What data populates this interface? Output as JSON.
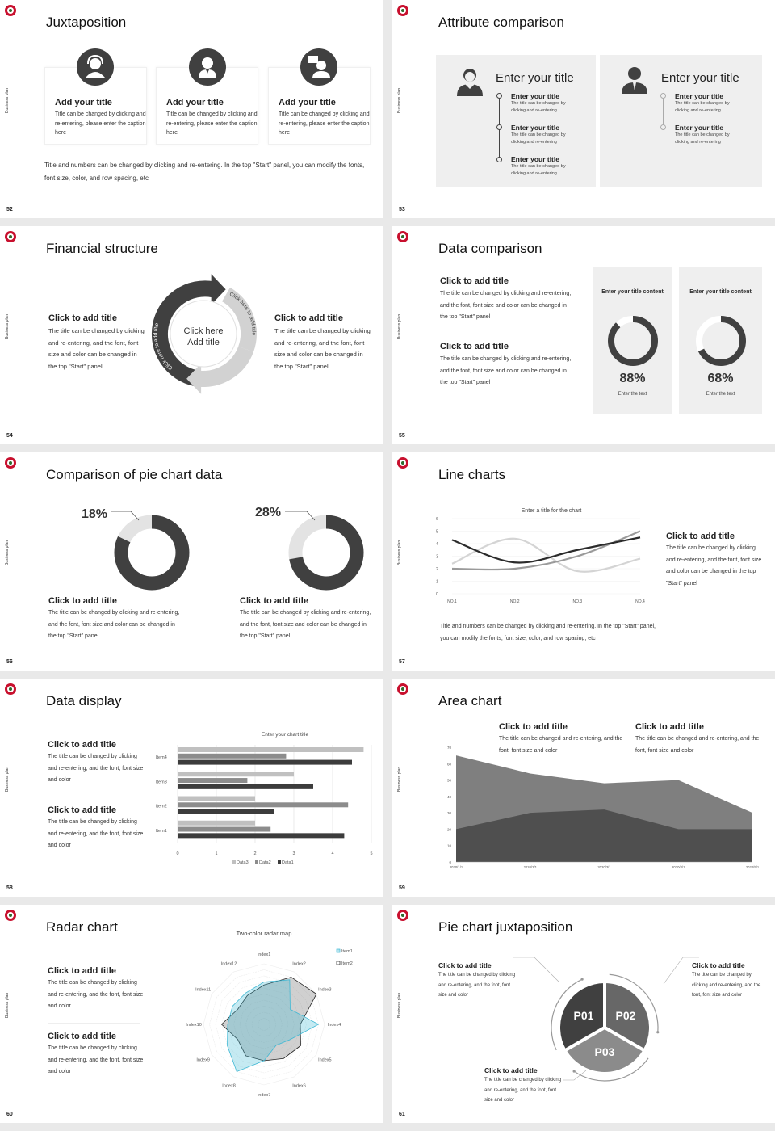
{
  "side_label": "Business plan",
  "colors": {
    "dark": "#404040",
    "mid": "#808080",
    "light": "#c8c8c8",
    "panel": "#efefef",
    "logo": "#c8102e",
    "radar_item1": "#3fb8d4",
    "radar_item2": "#222222"
  },
  "slide52": {
    "page": "52",
    "title": "Juxtaposition",
    "cards": [
      {
        "icon": "customer-service-icon",
        "title": "Add your title",
        "text": "Title can be changed by clicking and re-entering, please enter the caption here"
      },
      {
        "icon": "businessman-icon",
        "title": "Add your title",
        "text": "Title can be changed by clicking and re-entering, please enter the caption here"
      },
      {
        "icon": "presenter-chat-icon",
        "title": "Add your title",
        "text": "Title can be changed by clicking and re-entering, please enter the caption here"
      }
    ],
    "footer": "Title and numbers can be changed by clicking and re-entering. In the top \"Start\" panel, you can modify the fonts, font size, color, and row spacing, etc"
  },
  "slide53": {
    "page": "53",
    "title": "Attribute comparison",
    "panels": [
      {
        "heading": "Enter your title",
        "items": [
          {
            "title": "Enter your title",
            "text": "The title can be changed by clicking and re-entering"
          },
          {
            "title": "Enter your title",
            "text": "The title can be changed by clicking and re-entering"
          },
          {
            "title": "Enter your title",
            "text": "The title can be changed by clicking and re-entering"
          }
        ]
      },
      {
        "heading": "Enter your title",
        "items": [
          {
            "title": "Enter your title",
            "text": "The title can be changed by clicking and re-entering"
          },
          {
            "title": "Enter your title",
            "text": "The title can be changed by clicking and re-entering"
          }
        ]
      }
    ]
  },
  "slide54": {
    "page": "54",
    "title": "Financial structure",
    "left": {
      "title": "Click to add title",
      "text": "The title can be changed by clicking and re-entering, and the font, font size and color can be changed in the top \"Start\" panel"
    },
    "right": {
      "title": "Click to add title",
      "text": "The title can be changed by clicking and re-entering, and the font, font size and color can be changed in the top \"Start\" panel"
    },
    "arc_label": "Click here to add title",
    "center_line1": "Click here",
    "center_line2": "Add title"
  },
  "slide55": {
    "page": "55",
    "title": "Data comparison",
    "blocks": [
      {
        "title": "Click to add title",
        "text": "The title can be changed by clicking and re-entering, and the font, font size and color can be changed in the top \"Start\" panel"
      },
      {
        "title": "Click to add title",
        "text": "The title can be changed by clicking and re-entering, and the font, font size and color can be changed in the top \"Start\" panel"
      }
    ],
    "cards": [
      {
        "heading": "Enter your title content",
        "value": "88%",
        "percent": 88,
        "caption": "Enter the text"
      },
      {
        "heading": "Enter your title content",
        "value": "68%",
        "percent": 68,
        "caption": "Enter the text"
      }
    ]
  },
  "slide56": {
    "page": "56",
    "title": "Comparison of pie chart data",
    "pies": [
      {
        "value": "18%",
        "percent": 18,
        "title": "Click to add title",
        "text": "The title can be changed by clicking and re-entering, and the font, font size and color can be changed in the top \"Start\" panel"
      },
      {
        "value": "28%",
        "percent": 28,
        "title": "Click to add title",
        "text": "The title can be changed by clicking and re-entering, and the font, font size and color can be changed in the top \"Start\" panel"
      }
    ]
  },
  "slide57": {
    "page": "57",
    "title": "Line charts",
    "side": {
      "title": "Click to add title",
      "text": "The title can be changed by clicking and re-entering, and the font, font size and color can be changed in the top \"Start\" panel"
    },
    "footer": "Title and numbers can be changed by clicking and re-entering. In the top \"Start\" panel, you can modify the fonts, font size, color, and row spacing, etc"
  },
  "slide58": {
    "page": "58",
    "title": "Data display",
    "blocks": [
      {
        "title": "Click to add title",
        "text": "The title can be changed by clicking and re-entering, and the font, font size and color"
      },
      {
        "title": "Click to add title",
        "text": "The title can be changed by clicking and re-entering, and the font, font size and color"
      }
    ]
  },
  "slide59": {
    "page": "59",
    "title": "Area chart",
    "blocks": [
      {
        "title": "Click to add title",
        "text": "The title can be changed and re-entering, and the font, font size and color"
      },
      {
        "title": "Click to add title",
        "text": "The title can be changed and re-entering, and the font, font size and color"
      }
    ]
  },
  "slide60": {
    "page": "60",
    "title": "Radar chart",
    "blocks": [
      {
        "title": "Click to add title",
        "text": "The title can be changed by clicking and re-entering, and the font, font size and color"
      },
      {
        "title": "Click to add title",
        "text": "The title can be changed by clicking and re-entering, and the font, font size and color"
      }
    ]
  },
  "slide61": {
    "page": "61",
    "title": "Pie chart juxtaposition",
    "segments": [
      "P01",
      "P02",
      "P03"
    ],
    "blocks": [
      {
        "title": "Click to add title",
        "text": "The title can be changed by clicking and re-entering, and the font, font size and color"
      },
      {
        "title": "Click to add title",
        "text": "The title can be changed by clicking and re-entering, and the font, font size and color"
      },
      {
        "title": "Click to add title",
        "text": "The title can be changed by clicking and re-entering, and the font, font size and color"
      }
    ]
  },
  "chart_data": [
    {
      "type": "line",
      "title": "Enter a title for the chart",
      "categories": [
        "NO.1",
        "NO.2",
        "NO.3",
        "NO.4"
      ],
      "ylim": [
        0,
        6
      ],
      "yticks": [
        "0",
        "1",
        "2",
        "3",
        "4",
        "5",
        "6"
      ],
      "grid": true,
      "smooth": true,
      "series": [
        {
          "color": "#2b2b2b",
          "values": [
            4.3,
            2.5,
            3.5,
            4.5
          ]
        },
        {
          "color": "#9a9a9a",
          "values": [
            2.0,
            2.0,
            3.0,
            5.0
          ]
        },
        {
          "color": "#d4d4d4",
          "values": [
            2.4,
            4.4,
            1.8,
            2.8
          ]
        }
      ]
    },
    {
      "type": "bar",
      "orientation": "horizontal",
      "title": "Enter your chart title",
      "categories": [
        "Item1",
        "Item2",
        "Item3",
        "Item4"
      ],
      "xlim": [
        0,
        5
      ],
      "xticks": [
        "0",
        "1",
        "2",
        "3",
        "4",
        "5"
      ],
      "grid": true,
      "legend": "bottom",
      "series": [
        {
          "name": "Data3",
          "color": "#c0c0c0",
          "values": [
            2.0,
            2.0,
            3.0,
            4.8
          ]
        },
        {
          "name": "Data2",
          "color": "#8c8c8c",
          "values": [
            2.4,
            4.4,
            1.8,
            2.8
          ]
        },
        {
          "name": "Data1",
          "color": "#3c3c3c",
          "values": [
            4.3,
            2.5,
            3.5,
            4.5
          ]
        }
      ]
    },
    {
      "type": "area",
      "categories": [
        "2020/1/1",
        "2020/2/1",
        "2020/3/1",
        "2020/4/1",
        "2020/5/1"
      ],
      "ylim": [
        0,
        70
      ],
      "yticks": [
        "0",
        "10",
        "20",
        "30",
        "40",
        "50",
        "60",
        "70"
      ],
      "series": [
        {
          "color": "#7f7f7f",
          "values": [
            65,
            54,
            48,
            50,
            30
          ]
        },
        {
          "color": "#4f4f4f",
          "values": [
            20,
            30,
            32,
            20,
            20
          ]
        }
      ]
    },
    {
      "type": "radar",
      "title": "Two-color radar map",
      "legend": "top-right",
      "axes": [
        "Index1",
        "Index2",
        "Index3",
        "Index4",
        "Index5",
        "Index6",
        "Index7",
        "Index8",
        "Index9",
        "Index10",
        "Index11",
        "Index12"
      ],
      "rmax": 10,
      "series": [
        {
          "name": "Item1",
          "color": "#3fb8d4",
          "values": [
            7,
            8.5,
            5,
            9,
            5,
            4,
            6,
            9,
            7,
            6,
            6,
            6
          ]
        },
        {
          "name": "Item2",
          "color": "#222222",
          "values": [
            6.5,
            9,
            10,
            6,
            7,
            6.5,
            6,
            6,
            5,
            7,
            5,
            5.5
          ]
        }
      ]
    },
    {
      "type": "donut",
      "values": [
        88,
        68
      ]
    },
    {
      "type": "donut",
      "values": [
        18,
        28
      ]
    }
  ]
}
